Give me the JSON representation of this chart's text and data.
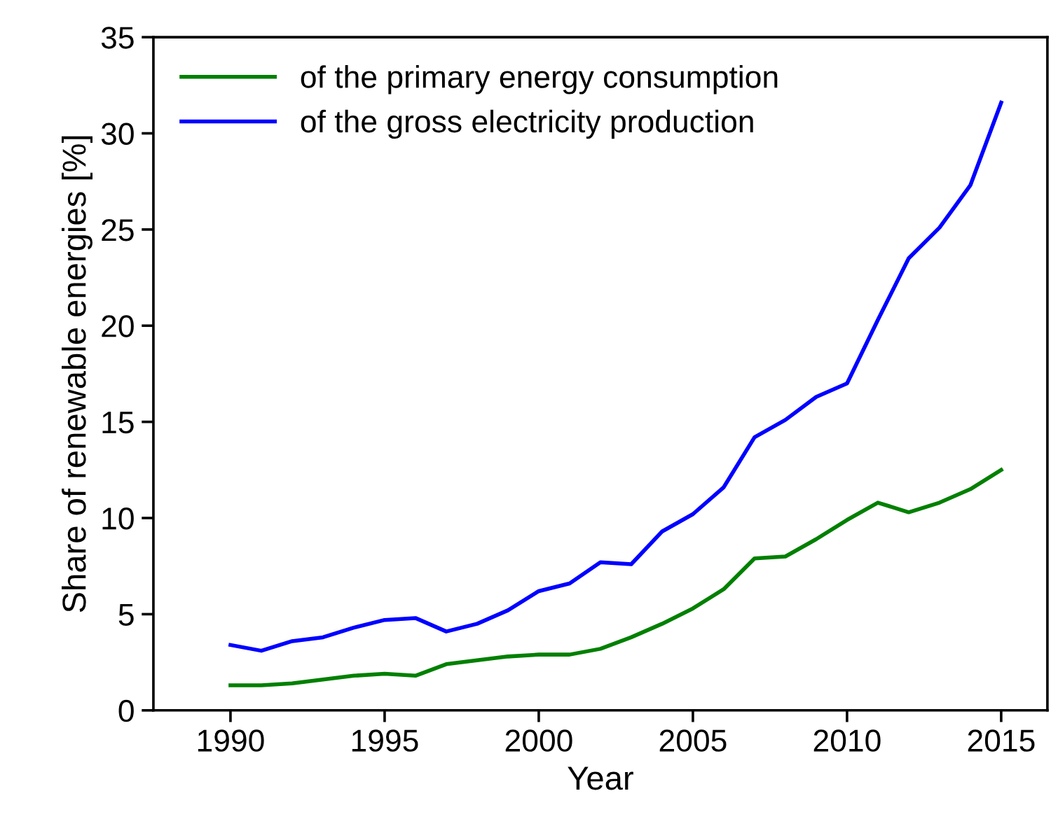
{
  "chart_data": {
    "type": "line",
    "xlabel": "Year",
    "ylabel": "Share of renewable energies [%]",
    "x": [
      1990,
      1991,
      1992,
      1993,
      1994,
      1995,
      1996,
      1997,
      1998,
      1999,
      2000,
      2001,
      2002,
      2003,
      2004,
      2005,
      2006,
      2007,
      2008,
      2009,
      2010,
      2011,
      2012,
      2013,
      2014,
      2015
    ],
    "series": [
      {
        "name": "of the primary energy consumption",
        "color": "#008000",
        "values": [
          1.3,
          1.3,
          1.4,
          1.6,
          1.8,
          1.9,
          1.8,
          2.4,
          2.6,
          2.8,
          2.9,
          2.9,
          3.2,
          3.8,
          4.5,
          5.3,
          6.3,
          7.9,
          8.0,
          8.9,
          9.9,
          10.8,
          10.3,
          10.8,
          11.5,
          12.5
        ]
      },
      {
        "name": "of the gross electricity production",
        "color": "#0000ff",
        "values": [
          3.4,
          3.1,
          3.6,
          3.8,
          4.3,
          4.7,
          4.8,
          4.1,
          4.5,
          5.2,
          6.2,
          6.6,
          7.7,
          7.6,
          9.3,
          10.2,
          11.6,
          14.2,
          15.1,
          16.3,
          17.0,
          20.3,
          23.5,
          25.1,
          27.3,
          31.6
        ]
      }
    ],
    "xlim": [
      1987.5,
      2016.5
    ],
    "ylim": [
      0,
      35
    ],
    "xticks": [
      1990,
      1995,
      2000,
      2005,
      2010,
      2015
    ],
    "yticks": [
      0,
      5,
      10,
      15,
      20,
      25,
      30,
      35
    ],
    "legend": "top left",
    "grid": false,
    "marker": "none",
    "line_style": "solid"
  }
}
